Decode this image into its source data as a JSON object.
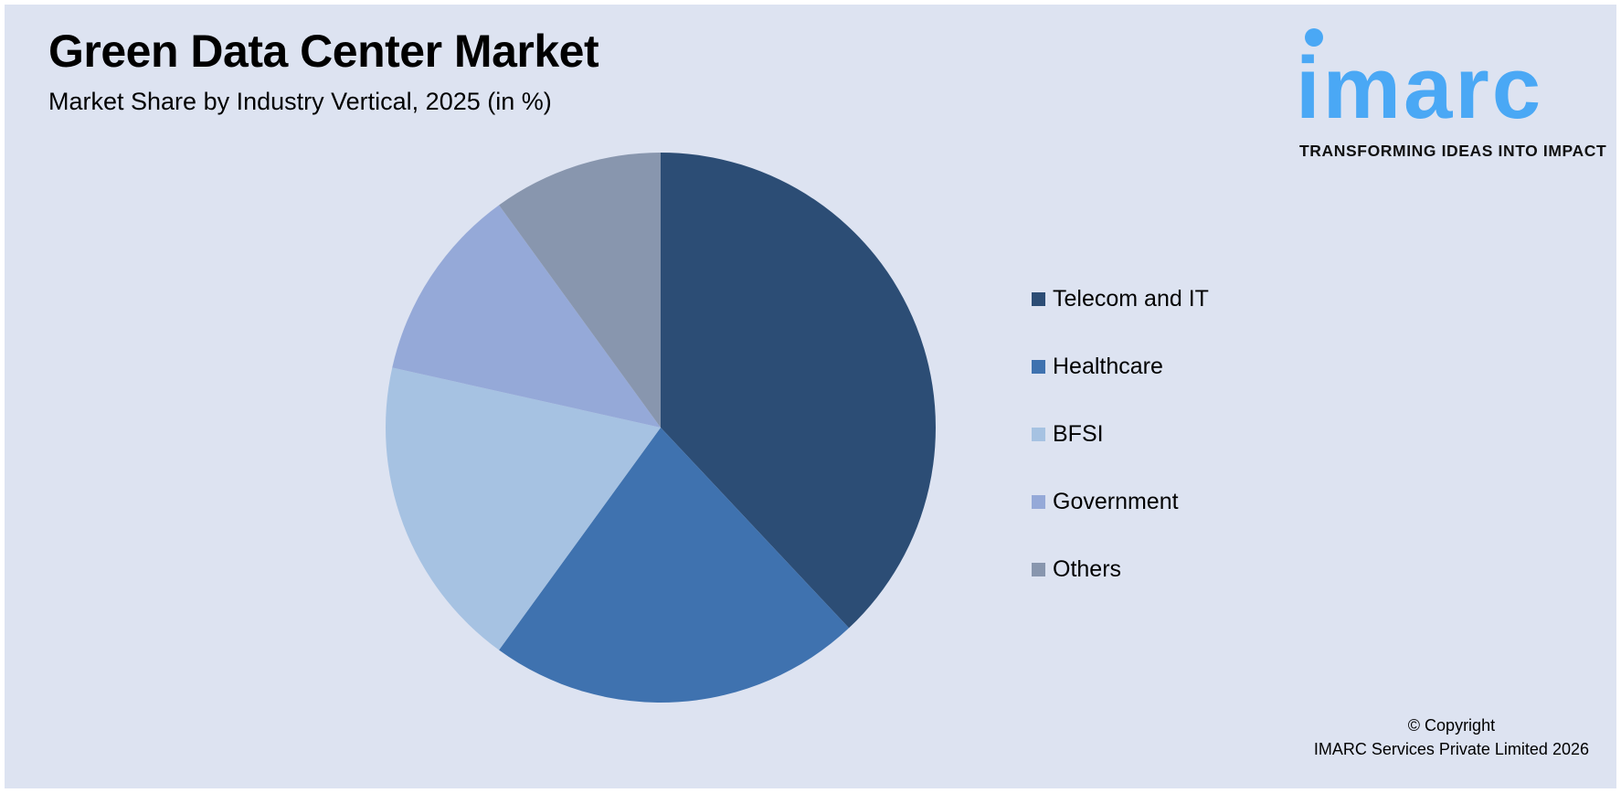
{
  "header": {
    "title": "Green Data Center Market",
    "subtitle": "Market Share by Industry Vertical, 2025 (in %)"
  },
  "logo": {
    "wordmark": "imarc",
    "tagline": "TRANSFORMING IDEAS INTO IMPACT",
    "color": "#4aa8f5"
  },
  "chart_data": {
    "type": "pie",
    "title": "Green Data Center Market",
    "subtitle": "Market Share by Industry Vertical, 2025 (in %)",
    "categories": [
      "Telecom and IT",
      "Healthcare",
      "BFSI",
      "Government",
      "Others"
    ],
    "values": [
      38,
      22,
      18.5,
      11.5,
      10
    ],
    "colors": [
      "#2c4d75",
      "#3f72af",
      "#a6c2e2",
      "#95a9d8",
      "#8896ae"
    ],
    "start_angle": "12 o'clock, clockwise",
    "legend_position": "right"
  },
  "footer": {
    "copyright_line1": "© Copyright",
    "copyright_line2": "IMARC Services Private Limited 2026"
  }
}
